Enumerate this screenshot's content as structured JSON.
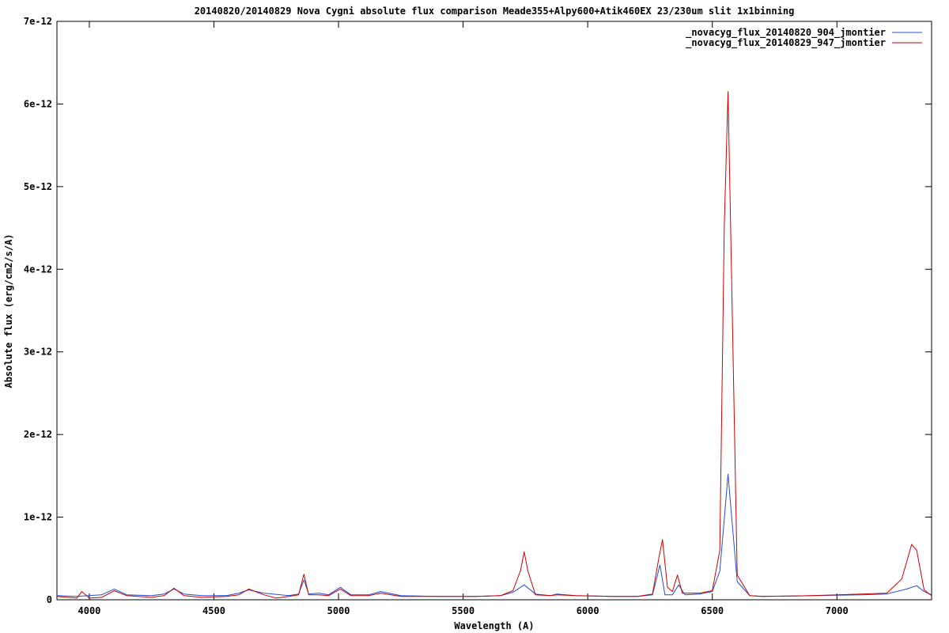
{
  "chart_data": {
    "type": "line",
    "title": "20140820/20140829 Nova Cygni absolute flux comparison Meade355+Alpy600+Atik460EX 23/230um slit 1x1binning",
    "xlabel": "Wavelength (A)",
    "ylabel": "Absolute flux (erg/cm2/s/A)",
    "xlim": [
      3870,
      7380
    ],
    "ylim": [
      0,
      7e-12
    ],
    "x_ticks": [
      4000,
      4500,
      5000,
      5500,
      6000,
      6500,
      7000
    ],
    "x_tick_labels": [
      "4000",
      "4500",
      "5000",
      "5500",
      "6000",
      "6500",
      "7000"
    ],
    "y_ticks": [
      0,
      1e-12,
      2e-12,
      3e-12,
      4e-12,
      5e-12,
      6e-12,
      7e-12
    ],
    "y_tick_labels": [
      "0",
      "1e-12",
      "2e-12",
      "3e-12",
      "4e-12",
      "5e-12",
      "6e-12",
      "7e-12"
    ],
    "grid": false,
    "legend_position": "top-right",
    "series": [
      {
        "name": "_novacyg_flux_20140820_904_jmontier",
        "color": "#1f4fd8",
        "x": [
          3870,
          3950,
          4050,
          4100,
          4150,
          4250,
          4300,
          4340,
          4380,
          4450,
          4550,
          4600,
          4640,
          4700,
          4800,
          4840,
          4861,
          4880,
          4920,
          4960,
          5007,
          5050,
          5120,
          5169,
          5250,
          5400,
          5550,
          5650,
          5700,
          5745,
          5790,
          5850,
          5876,
          5950,
          6100,
          6200,
          6260,
          6290,
          6310,
          6340,
          6365,
          6390,
          6450,
          6500,
          6530,
          6550,
          6563,
          6575,
          6600,
          6650,
          6700,
          6900,
          7100,
          7200,
          7280,
          7320,
          7350,
          7380
        ],
        "values": [
          5e-14,
          4e-14,
          6e-14,
          1.3e-13,
          6e-14,
          5e-14,
          7e-14,
          1.3e-13,
          7e-14,
          5e-14,
          5e-14,
          8e-14,
          1.2e-13,
          8e-14,
          5e-14,
          7e-14,
          2.4e-13,
          7e-14,
          8e-14,
          6e-14,
          1.5e-13,
          6e-14,
          6e-14,
          1e-13,
          5e-14,
          4e-14,
          4e-14,
          5e-14,
          9e-14,
          1.8e-13,
          7e-14,
          5e-14,
          7e-14,
          5e-14,
          4e-14,
          4e-14,
          6e-14,
          4.2e-13,
          6e-14,
          6e-14,
          1.8e-13,
          6e-14,
          7e-14,
          1e-13,
          3.5e-13,
          1.05e-12,
          1.52e-12,
          1.1e-12,
          2.2e-13,
          5e-14,
          4e-14,
          5e-14,
          6e-14,
          7e-14,
          1.3e-13,
          1.7e-13,
          1e-13,
          6e-14
        ]
      },
      {
        "name": "_novacyg_flux_20140829_947_jmontier",
        "color": "#cc0000",
        "x": [
          3870,
          3950,
          3970,
          4000,
          4050,
          4100,
          4150,
          4250,
          4300,
          4340,
          4380,
          4450,
          4550,
          4600,
          4640,
          4700,
          4750,
          4800,
          4840,
          4861,
          4880,
          4920,
          4960,
          5007,
          5050,
          5120,
          5169,
          5250,
          5400,
          5550,
          5650,
          5700,
          5730,
          5745,
          5760,
          5790,
          5850,
          5876,
          5950,
          6100,
          6200,
          6260,
          6285,
          6300,
          6320,
          6340,
          6360,
          6380,
          6450,
          6500,
          6530,
          6548,
          6563,
          6578,
          6600,
          6650,
          6700,
          6900,
          7100,
          7200,
          7260,
          7300,
          7320,
          7350,
          7380
        ],
        "values": [
          4e-14,
          2e-14,
          1e-13,
          2e-14,
          3e-14,
          1.1e-13,
          5e-14,
          3e-14,
          5e-14,
          1.4e-13,
          5e-14,
          3e-14,
          4e-14,
          6e-14,
          1.3e-13,
          6e-14,
          2e-14,
          4e-14,
          6e-14,
          3.1e-13,
          6e-14,
          6e-14,
          5e-14,
          1.3e-13,
          5e-14,
          5e-14,
          8e-14,
          4e-14,
          4e-14,
          4e-14,
          5e-14,
          1.1e-13,
          3.5e-13,
          5.8e-13,
          3.5e-13,
          6e-14,
          5e-14,
          6e-14,
          5e-14,
          4e-14,
          4e-14,
          7e-14,
          5e-13,
          7.3e-13,
          1.5e-13,
          1e-13,
          3e-13,
          8e-14,
          8e-14,
          1.1e-13,
          6e-13,
          4.5e-12,
          6.15e-12,
          3.8e-12,
          3e-13,
          5e-14,
          4e-14,
          5e-14,
          7e-14,
          8e-14,
          2.5e-13,
          6.7e-13,
          6e-13,
          1.2e-13,
          5e-14
        ]
      }
    ]
  }
}
